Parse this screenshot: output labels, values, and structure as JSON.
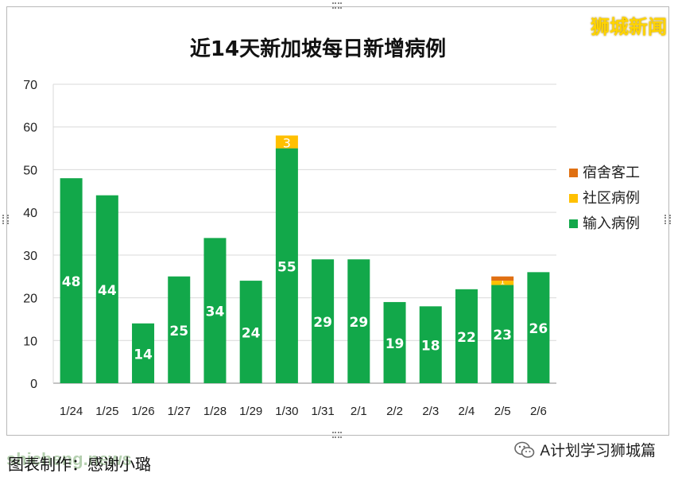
{
  "chart_data": {
    "type": "bar",
    "stacked": true,
    "title": "近14天新加坡每日新增病例",
    "categories": [
      "1/24",
      "1/25",
      "1/26",
      "1/27",
      "1/28",
      "1/29",
      "1/30",
      "1/31",
      "2/1",
      "2/2",
      "2/3",
      "2/4",
      "2/5",
      "2/6"
    ],
    "series": [
      {
        "name": "输入病例",
        "color": "#12a84a",
        "values": [
          48,
          44,
          14,
          25,
          34,
          24,
          55,
          29,
          29,
          19,
          18,
          22,
          23,
          26
        ]
      },
      {
        "name": "社区病例",
        "color": "#ffc000",
        "values": [
          0,
          0,
          0,
          0,
          0,
          0,
          3,
          0,
          0,
          0,
          0,
          0,
          1,
          0
        ]
      },
      {
        "name": "宿舍客工",
        "color": "#e07012",
        "values": [
          0,
          0,
          0,
          0,
          0,
          0,
          0,
          0,
          0,
          0,
          0,
          0,
          1,
          0
        ]
      }
    ],
    "ylim": [
      0,
      70
    ],
    "yticks": [
      0,
      10,
      20,
      30,
      40,
      50,
      60,
      70
    ],
    "grid": true,
    "legend": "right"
  },
  "brand": "狮城新闻",
  "credit": "图表制作：感谢小璐",
  "watermark_site": "shicheng.news",
  "wechat_account": "A计划学习狮城篇"
}
